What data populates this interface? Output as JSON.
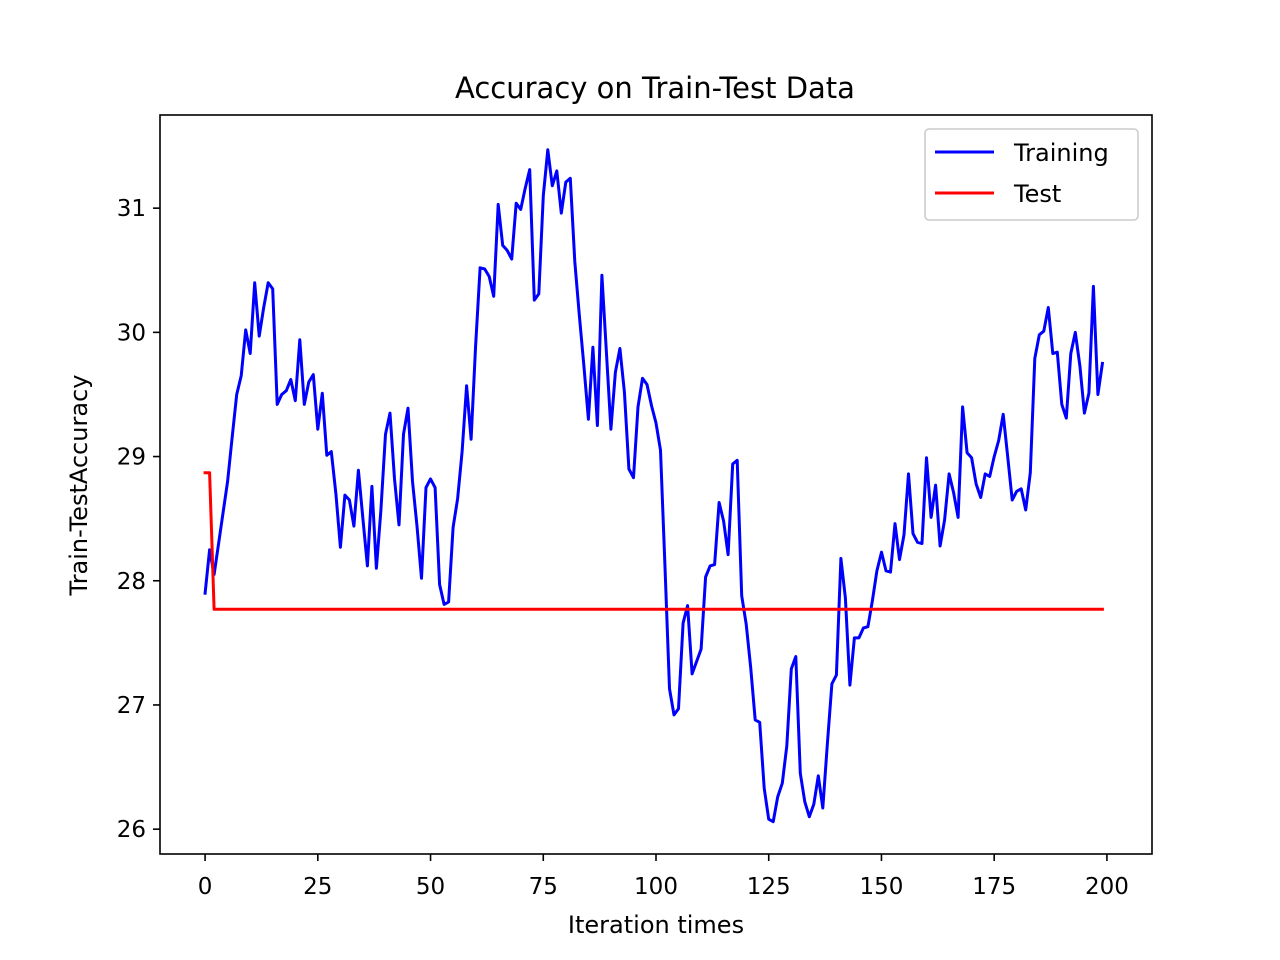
{
  "chart_data": {
    "type": "line",
    "title": "Accuracy on Train-Test Data",
    "xlabel": "Iteration times",
    "ylabel": "Train-TestAccuracy",
    "xlim": [
      -10,
      210
    ],
    "ylim": [
      25.8,
      31.75
    ],
    "xticks": [
      0,
      25,
      50,
      75,
      100,
      125,
      150,
      175,
      200
    ],
    "yticks": [
      26,
      27,
      28,
      29,
      30,
      31
    ],
    "grid": false,
    "legend_position": "top-right",
    "series": [
      {
        "name": "Training",
        "color": "#0000ff",
        "x": [
          0,
          1,
          2,
          3,
          4,
          5,
          6,
          7,
          8,
          9,
          10,
          11,
          12,
          13,
          14,
          15,
          16,
          17,
          18,
          19,
          20,
          21,
          22,
          23,
          24,
          25,
          26,
          27,
          28,
          29,
          30,
          31,
          32,
          33,
          34,
          35,
          36,
          37,
          38,
          39,
          40,
          41,
          42,
          43,
          44,
          45,
          46,
          47,
          48,
          49,
          50,
          51,
          52,
          53,
          54,
          55,
          56,
          57,
          58,
          59,
          60,
          61,
          62,
          63,
          64,
          65,
          66,
          67,
          68,
          69,
          70,
          71,
          72,
          73,
          74,
          75,
          76,
          77,
          78,
          79,
          80,
          81,
          82,
          83,
          84,
          85,
          86,
          87,
          88,
          89,
          90,
          91,
          92,
          93,
          94,
          95,
          96,
          97,
          98,
          99,
          100,
          101,
          102,
          103,
          104,
          105,
          106,
          107,
          108,
          109,
          110,
          111,
          112,
          113,
          114,
          115,
          116,
          117,
          118,
          119,
          120,
          121,
          122,
          123,
          124,
          125,
          126,
          127,
          128,
          129,
          130,
          131,
          132,
          133,
          134,
          135,
          136,
          137,
          138,
          139,
          140,
          141,
          142,
          143,
          144,
          145,
          146,
          147,
          148,
          149,
          150,
          151,
          152,
          153,
          154,
          155,
          156,
          157,
          158,
          159,
          160,
          161,
          162,
          163,
          164,
          165,
          166,
          167,
          168,
          169,
          170,
          171,
          172,
          173,
          174,
          175,
          176,
          177,
          178,
          179,
          180,
          181,
          182,
          183,
          184,
          185,
          186,
          187,
          188,
          189,
          190,
          191,
          192,
          193,
          194,
          195,
          196,
          197,
          198,
          199
        ],
        "y": [
          27.9,
          28.25,
          28.05,
          28.3,
          28.55,
          28.8,
          29.15,
          29.5,
          29.65,
          30.02,
          29.83,
          30.4,
          29.97,
          30.2,
          30.4,
          30.35,
          29.42,
          29.5,
          29.53,
          29.62,
          29.45,
          29.94,
          29.42,
          29.6,
          29.66,
          29.22,
          29.51,
          29.01,
          29.04,
          28.7,
          28.27,
          28.69,
          28.65,
          28.44,
          28.89,
          28.5,
          28.12,
          28.76,
          28.1,
          28.57,
          29.18,
          29.35,
          28.82,
          28.45,
          29.18,
          29.39,
          28.8,
          28.44,
          28.02,
          28.75,
          28.82,
          28.75,
          27.97,
          27.81,
          27.83,
          28.43,
          28.66,
          29.04,
          29.57,
          29.14,
          29.89,
          30.52,
          30.51,
          30.45,
          30.29,
          31.03,
          30.7,
          30.66,
          30.59,
          31.04,
          30.99,
          31.16,
          31.31,
          30.26,
          30.31,
          31.1,
          31.47,
          31.18,
          31.3,
          30.96,
          31.21,
          31.24,
          30.57,
          30.14,
          29.73,
          29.3,
          29.88,
          29.25,
          30.46,
          29.84,
          29.22,
          29.68,
          29.87,
          29.52,
          28.9,
          28.83,
          29.4,
          29.63,
          29.58,
          29.41,
          29.27,
          29.05,
          28.11,
          27.13,
          26.92,
          26.97,
          27.66,
          27.8,
          27.25,
          27.35,
          27.45,
          28.03,
          28.12,
          28.13,
          28.63,
          28.48,
          28.21,
          28.94,
          28.97,
          27.88,
          27.65,
          27.3,
          26.88,
          26.86,
          26.33,
          26.08,
          26.06,
          26.26,
          26.37,
          26.67,
          27.29,
          27.39,
          26.45,
          26.22,
          26.1,
          26.2,
          26.43,
          26.17,
          26.68,
          27.17,
          27.24,
          28.18,
          27.86,
          27.16,
          27.54,
          27.54,
          27.62,
          27.63,
          27.84,
          28.08,
          28.23,
          28.08,
          28.07,
          28.46,
          28.17,
          28.37,
          28.86,
          28.38,
          28.31,
          28.3,
          28.99,
          28.51,
          28.77,
          28.28,
          28.49,
          28.86,
          28.71,
          28.51,
          29.4,
          29.03,
          28.99,
          28.78,
          28.67,
          28.86,
          28.84,
          29.0,
          29.13,
          29.34,
          29.0,
          28.65,
          28.72,
          28.74,
          28.57,
          28.87,
          29.79,
          29.98,
          30.01,
          30.2,
          29.83,
          29.84,
          29.42,
          29.31,
          29.83,
          30.0,
          29.73,
          29.35,
          29.51,
          30.37,
          29.5,
          29.75
        ]
      },
      {
        "name": "Test",
        "color": "#ff0000",
        "x": [
          0,
          1,
          2,
          199
        ],
        "y": [
          28.87,
          28.87,
          27.77,
          27.77
        ]
      }
    ]
  }
}
